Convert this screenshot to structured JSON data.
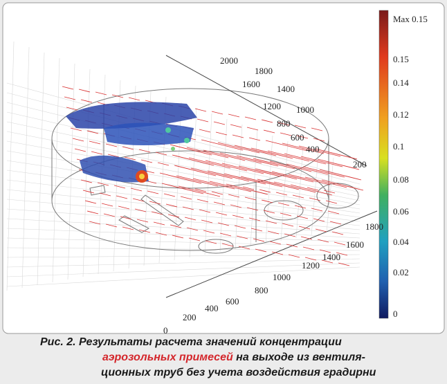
{
  "figure": {
    "back_axis_labels": [
      "2000",
      "1800",
      "1600",
      "1400",
      "1200",
      "1000",
      "800",
      "600",
      "400",
      "200"
    ],
    "front_axis_labels": [
      "1800",
      "1600",
      "1400",
      "1200",
      "1000",
      "800",
      "600",
      "400",
      "200",
      "0"
    ],
    "colorbar_labels": [
      "Max 0.15",
      "0.15",
      "0.14",
      "0.12",
      "0.1",
      "0.08",
      "0.06",
      "0.04",
      "0.02",
      "0"
    ]
  },
  "caption": {
    "line1": "Рис. 2. Результаты расчета значений концентрации",
    "line2_highlight": "аэрозольных примесей",
    "line2_rest": " на выходе из вентиля-",
    "line3": "ционных труб без учета воздействия градирни"
  }
}
